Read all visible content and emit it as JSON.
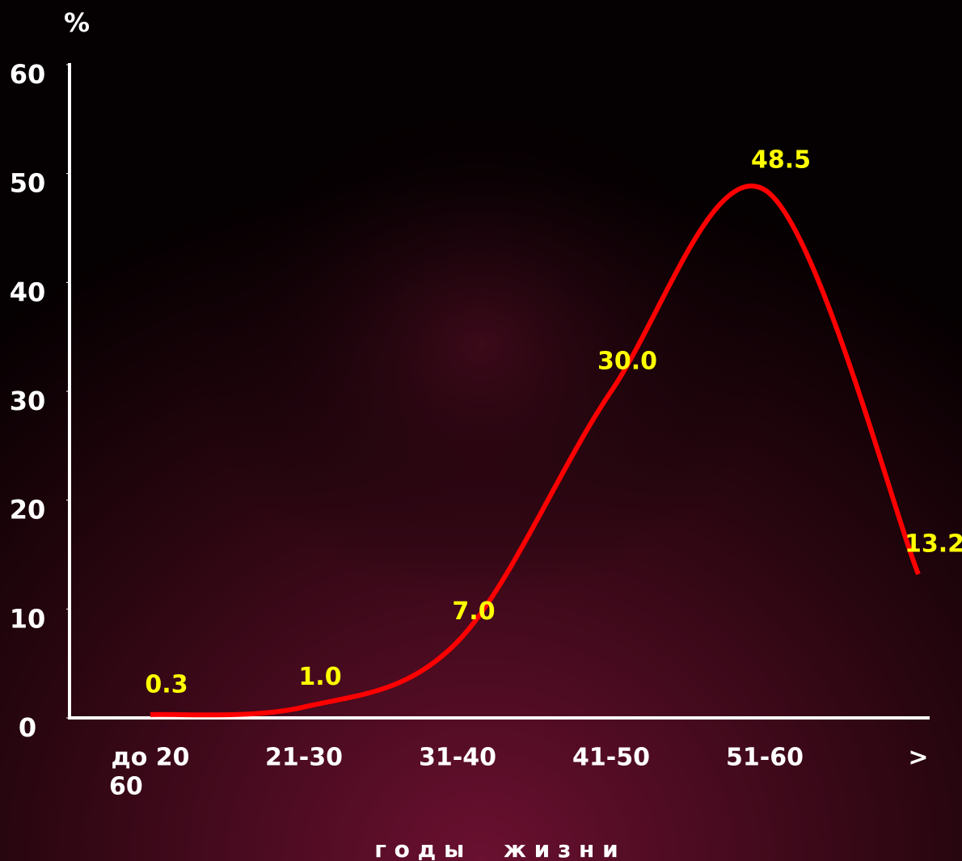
{
  "chart_data": {
    "type": "line",
    "y_label": "%",
    "x_label": "г о д ы     ж и з н и",
    "categories": [
      "до 20",
      "21-30",
      "31-40",
      "41-50",
      "51-60",
      ">"
    ],
    "category_note": "60",
    "series": [
      {
        "name": null,
        "color": "#ff0000",
        "values": [
          0.3,
          1.0,
          7.0,
          30.0,
          48.5,
          13.2
        ],
        "value_labels": [
          "0.3",
          "1.0",
          "7.0",
          "30.0",
          "48.5",
          "13.2"
        ]
      }
    ],
    "ylim": [
      0,
      60
    ],
    "yticks": [
      0,
      10,
      20,
      30,
      40,
      50,
      60
    ],
    "label_color": "#ffff00"
  }
}
